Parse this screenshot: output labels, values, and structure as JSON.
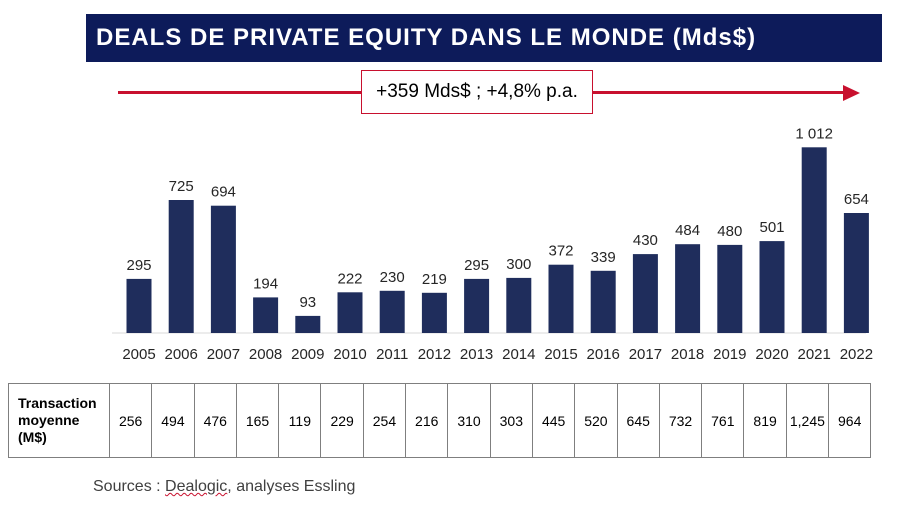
{
  "title": "DEALS DE PRIVATE EQUITY DANS LE MONDE (Mds$)",
  "growth_label": "+359 Mds$ ; +4,8% p.a.",
  "colors": {
    "title_bg": "#0d1b5a",
    "bar": "#1f2d5c",
    "arrow": "#c8102e"
  },
  "chart_data": {
    "type": "bar",
    "categories": [
      "2005",
      "2006",
      "2007",
      "2008",
      "2009",
      "2010",
      "2011",
      "2012",
      "2013",
      "2014",
      "2015",
      "2016",
      "2017",
      "2018",
      "2019",
      "2020",
      "2021",
      "2022"
    ],
    "values": [
      295,
      725,
      694,
      194,
      93,
      222,
      230,
      219,
      295,
      300,
      372,
      339,
      430,
      484,
      480,
      501,
      1012,
      654
    ],
    "value_labels": [
      "295",
      "725",
      "694",
      "194",
      "93",
      "222",
      "230",
      "219",
      "295",
      "300",
      "372",
      "339",
      "430",
      "484",
      "480",
      "501",
      "1 012",
      "654"
    ],
    "title": "DEALS DE PRIVATE EQUITY DANS LE MONDE (Mds$)",
    "xlabel": "",
    "ylabel": "",
    "grid": false,
    "legend": "none"
  },
  "table": {
    "row_label_lines": [
      "Transaction",
      "moyenne",
      "(M$)"
    ],
    "values": [
      "256",
      "494",
      "476",
      "165",
      "119",
      "229",
      "254",
      "216",
      "310",
      "303",
      "445",
      "520",
      "645",
      "732",
      "761",
      "819",
      "1,245",
      "964"
    ]
  },
  "sources": {
    "prefix": "Sources : ",
    "underlined": "Dealogic",
    "suffix": ", analyses Essling"
  }
}
